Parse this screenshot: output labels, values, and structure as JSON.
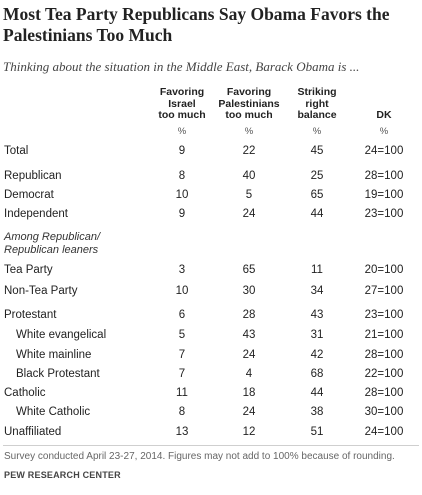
{
  "title": "Most Tea Party Republicans Say Obama Favors the Palestinians Too Much",
  "subtitle": "Thinking about the situation in the Middle East, Barack Obama is ...",
  "columns": [
    {
      "line1": "Favoring",
      "line2": "Israel",
      "line3": "too much"
    },
    {
      "line1": "Favoring",
      "line2": "Palestinians",
      "line3": "too much"
    },
    {
      "line1": "Striking",
      "line2": "right",
      "line3": "balance"
    },
    {
      "line1": "DK",
      "line2": "",
      "line3": ""
    }
  ],
  "unit_label": "%",
  "section_label": {
    "line1": "Among Republican/",
    "line2": "Republican leaners"
  },
  "chart_data": {
    "type": "table",
    "columns": [
      "Favoring Israel too much",
      "Favoring Palestinians too much",
      "Striking right balance",
      "DK"
    ],
    "rows": [
      {
        "label": "Total",
        "values": [
          "9",
          "22",
          "45",
          "24=100"
        ]
      },
      {
        "label": "Republican",
        "values": [
          "8",
          "40",
          "25",
          "28=100"
        ]
      },
      {
        "label": "Democrat",
        "values": [
          "10",
          "5",
          "65",
          "19=100"
        ]
      },
      {
        "label": "Independent",
        "values": [
          "9",
          "24",
          "44",
          "23=100"
        ]
      },
      {
        "label": "Tea Party",
        "values": [
          "3",
          "65",
          "11",
          "20=100"
        ]
      },
      {
        "label": "Non-Tea Party",
        "values": [
          "10",
          "30",
          "34",
          "27=100"
        ]
      },
      {
        "label": "Protestant",
        "values": [
          "6",
          "28",
          "43",
          "23=100"
        ]
      },
      {
        "label": "White evangelical",
        "values": [
          "5",
          "43",
          "31",
          "21=100"
        ]
      },
      {
        "label": "White mainline",
        "values": [
          "7",
          "24",
          "42",
          "28=100"
        ]
      },
      {
        "label": "Black Protestant",
        "values": [
          "7",
          "4",
          "68",
          "22=100"
        ]
      },
      {
        "label": "Catholic",
        "values": [
          "11",
          "18",
          "44",
          "28=100"
        ]
      },
      {
        "label": "White Catholic",
        "values": [
          "8",
          "24",
          "38",
          "30=100"
        ]
      },
      {
        "label": "Unaffiliated",
        "values": [
          "13",
          "12",
          "51",
          "24=100"
        ]
      }
    ]
  },
  "footnote": "Survey conducted April 23-27, 2014. Figures may not add to 100% because of rounding.",
  "source": "PEW RESEARCH CENTER"
}
